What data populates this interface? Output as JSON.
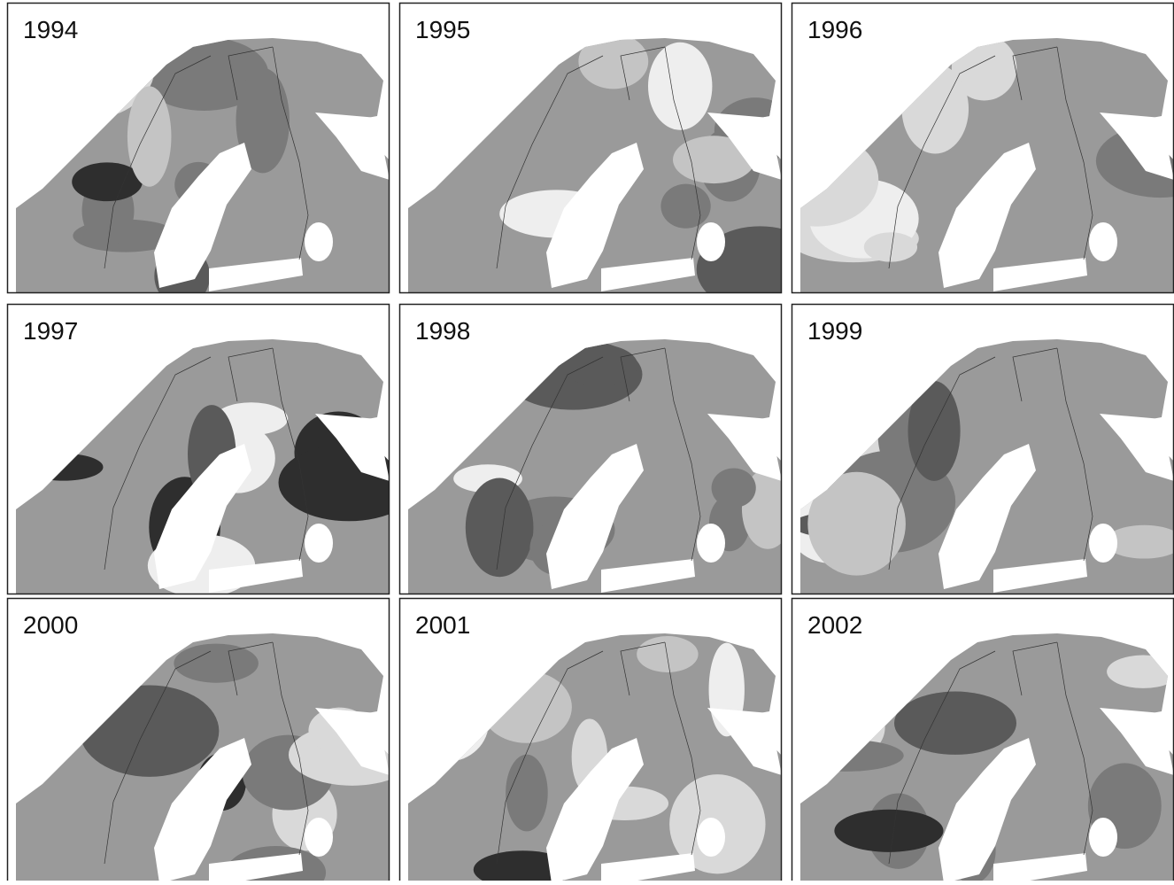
{
  "panels": [
    {
      "year": "1994"
    },
    {
      "year": "1995"
    },
    {
      "year": "1996"
    },
    {
      "year": "1997"
    },
    {
      "year": "1998"
    },
    {
      "year": "1999"
    },
    {
      "year": "2000"
    },
    {
      "year": "2001"
    },
    {
      "year": "2002"
    }
  ]
}
